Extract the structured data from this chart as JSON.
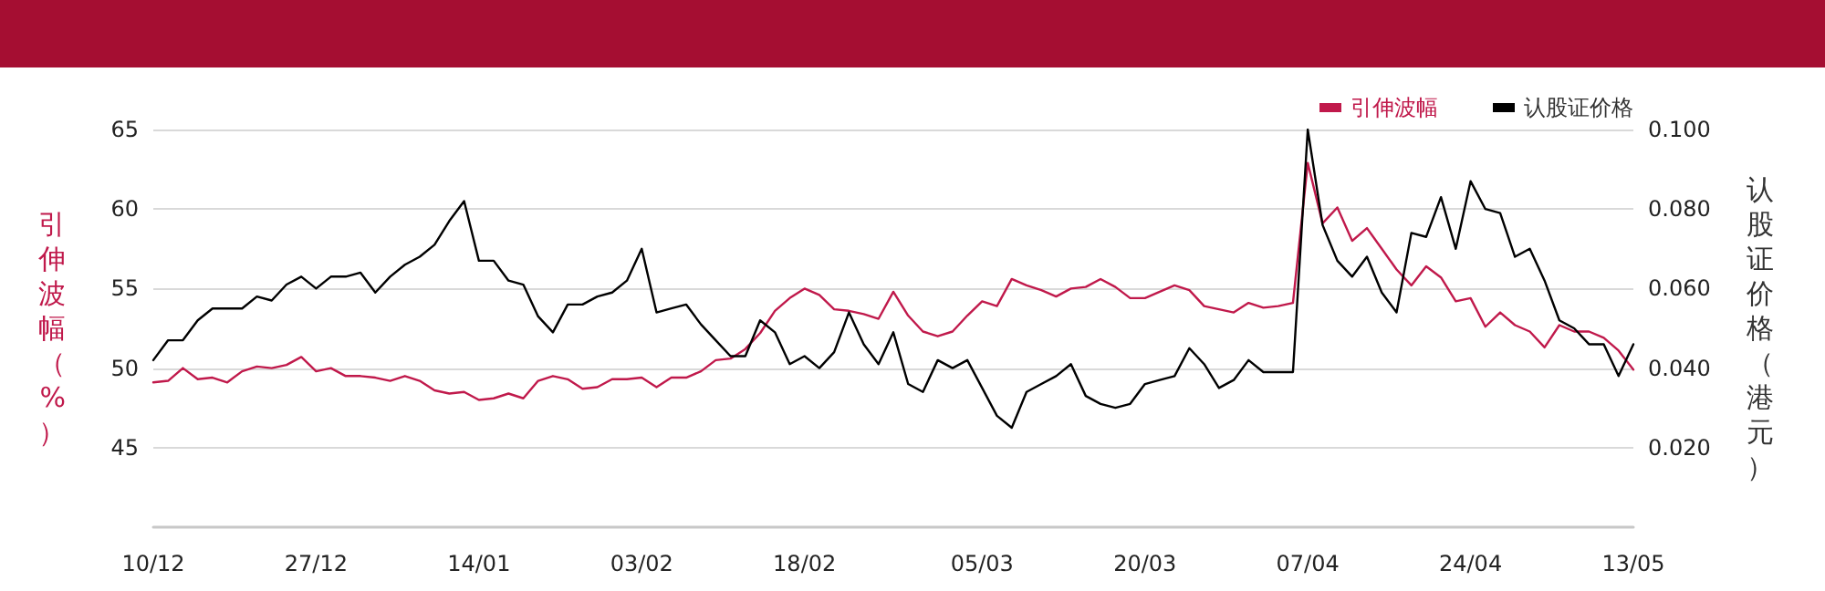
{
  "chart_data": {
    "type": "line",
    "ylabel": "引伸波幅（%）",
    "y2label": "认股证价格（港元）",
    "categories": [
      "10/12",
      null,
      null,
      null,
      null,
      null,
      null,
      null,
      null,
      null,
      null,
      "27/12",
      null,
      null,
      null,
      null,
      null,
      null,
      null,
      null,
      null,
      null,
      "14/01",
      null,
      null,
      null,
      null,
      null,
      null,
      null,
      null,
      null,
      null,
      "03/02",
      null,
      null,
      null,
      null,
      null,
      null,
      null,
      null,
      null,
      null,
      "18/02",
      null,
      null,
      null,
      null,
      null,
      null,
      null,
      null,
      null,
      null,
      null,
      "05/03",
      null,
      null,
      null,
      null,
      null,
      null,
      null,
      null,
      null,
      null,
      "20/03",
      null,
      null,
      null,
      null,
      null,
      null,
      null,
      null,
      null,
      null,
      "07/04",
      null,
      null,
      null,
      null,
      null,
      null,
      null,
      null,
      null,
      null,
      "24/04",
      null,
      null,
      null,
      null,
      null,
      null,
      null,
      null,
      null,
      null,
      "13/05"
    ],
    "series": [
      {
        "name": "引伸波幅",
        "color": "#c0194b",
        "values": [
          49.1,
          49.2,
          50.0,
          49.3,
          49.4,
          49.1,
          49.8,
          50.1,
          50.0,
          50.2,
          50.7,
          49.8,
          50.0,
          49.5,
          49.5,
          49.4,
          49.2,
          49.5,
          49.2,
          48.6,
          48.4,
          48.5,
          48.0,
          48.1,
          48.4,
          48.1,
          49.2,
          49.5,
          49.3,
          48.7,
          48.8,
          49.3,
          49.3,
          49.4,
          48.8,
          49.4,
          49.4,
          49.8,
          50.5,
          50.6,
          51.2,
          52.2,
          53.6,
          54.4,
          55.0,
          54.6,
          53.7,
          53.6,
          53.4,
          53.1,
          54.8,
          53.3,
          52.3,
          52.0,
          52.3,
          53.3,
          54.2,
          53.9,
          55.6,
          55.2,
          54.9,
          54.5,
          55.0,
          55.1,
          55.6,
          55.1,
          54.4,
          54.4,
          54.8,
          55.2,
          54.9,
          53.9,
          53.7,
          53.5,
          54.1,
          53.8,
          53.9,
          54.1,
          62.9,
          59.1,
          60.1,
          58.0,
          58.8,
          57.5,
          56.2,
          55.2,
          56.4,
          55.7,
          54.2,
          54.4,
          52.6,
          53.5,
          52.7,
          52.3,
          51.3,
          52.7,
          52.3,
          52.3,
          51.9,
          51.1,
          49.9
        ]
      },
      {
        "name": "认股证价格",
        "color": "#000000",
        "axis": "y2",
        "values": [
          0.042,
          0.047,
          0.047,
          0.052,
          0.055,
          0.055,
          0.055,
          0.058,
          0.057,
          0.061,
          0.063,
          0.06,
          0.063,
          0.063,
          0.064,
          0.059,
          0.063,
          0.066,
          0.068,
          0.071,
          0.077,
          0.082,
          0.067,
          0.067,
          0.062,
          0.061,
          0.053,
          0.049,
          0.056,
          0.056,
          0.058,
          0.059,
          0.062,
          0.07,
          0.054,
          0.055,
          0.056,
          0.051,
          0.047,
          0.043,
          0.043,
          0.052,
          0.049,
          0.041,
          0.043,
          0.04,
          0.044,
          0.054,
          0.046,
          0.041,
          0.049,
          0.036,
          0.034,
          0.042,
          0.04,
          0.042,
          0.035,
          0.028,
          0.025,
          0.034,
          0.036,
          0.038,
          0.041,
          0.033,
          0.031,
          0.03,
          0.031,
          0.036,
          0.037,
          0.038,
          0.045,
          0.041,
          0.035,
          0.037,
          0.042,
          0.039,
          0.039,
          0.039,
          0.1,
          0.076,
          0.067,
          0.063,
          0.068,
          0.059,
          0.054,
          0.074,
          0.073,
          0.083,
          0.07,
          0.087,
          0.08,
          0.079,
          0.068,
          0.07,
          0.062,
          0.052,
          0.05,
          0.046,
          0.046,
          0.038,
          0.046
        ]
      }
    ],
    "ylim": [
      40,
      65
    ],
    "yticks": [
      45,
      50,
      55,
      60,
      65
    ],
    "y2lim": [
      0,
      0.1
    ],
    "y2ticks": [
      {
        "value": 0.02,
        "label": "0.020"
      },
      {
        "value": 0.04,
        "label": "0.040"
      },
      {
        "value": 0.06,
        "label": "0.060"
      },
      {
        "value": 0.08,
        "label": "0.080"
      },
      {
        "value": 0.1,
        "label": "0.100"
      }
    ],
    "grid": "y",
    "legend": "top right",
    "marker": "none",
    "line_style": "solid"
  }
}
